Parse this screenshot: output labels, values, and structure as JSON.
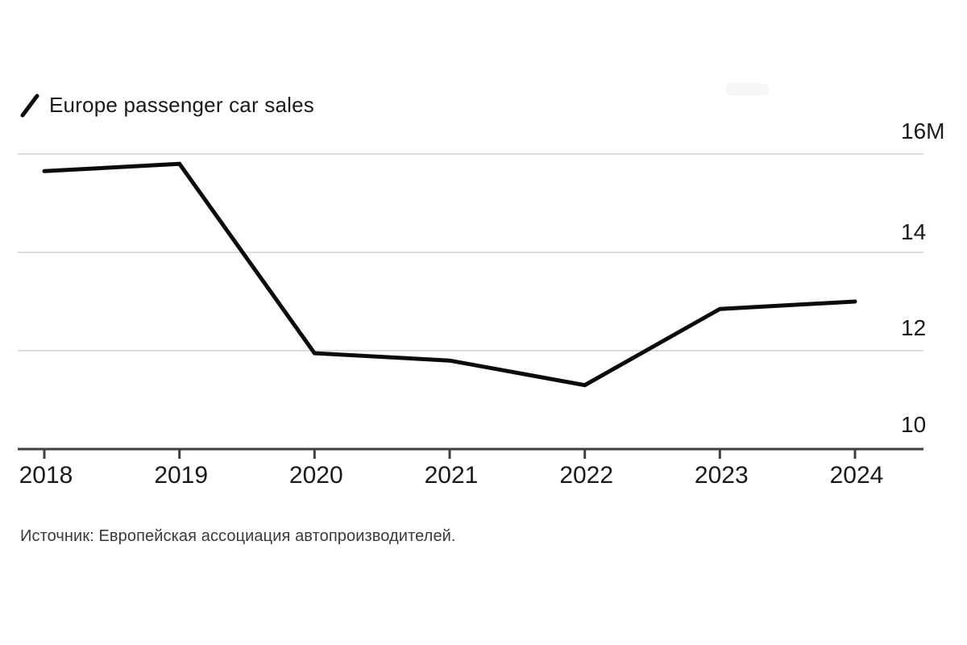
{
  "colors": {
    "background": "#ffffff",
    "line": "#0b0b0b",
    "grid": "#dcdcdc",
    "axis": "#3f3f3f",
    "text": "#1a1a1a",
    "source_text": "#3a3a3a"
  },
  "chart_data": {
    "type": "line",
    "title": "Europe passenger car sales",
    "categories": [
      "2018",
      "2019",
      "2020",
      "2021",
      "2022",
      "2023",
      "2024"
    ],
    "series": [
      {
        "name": "Europe passenger car sales",
        "values": [
          15.65,
          15.8,
          11.95,
          11.8,
          11.3,
          12.85,
          13.0
        ]
      }
    ],
    "unit": "M",
    "xlabel": "",
    "ylabel": "",
    "ylim": [
      10,
      16
    ],
    "yticks": [
      {
        "label": "16M",
        "value": 16
      },
      {
        "label": "14",
        "value": 14
      },
      {
        "label": "12",
        "value": 12
      },
      {
        "label": "10",
        "value": 10
      }
    ],
    "grid": "horizontal-only",
    "legend_position": "top-left",
    "source_note": "Источник: Европейская ассоциация автопроизводителей."
  }
}
